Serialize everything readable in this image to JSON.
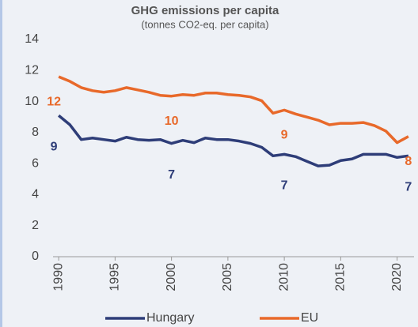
{
  "chart_data": {
    "type": "line",
    "title": "GHG emissions per capita",
    "subtitle": "(tonnes CO2-eq. per capita)",
    "x": [
      1990,
      1991,
      1992,
      1993,
      1994,
      1995,
      1996,
      1997,
      1998,
      1999,
      2000,
      2001,
      2002,
      2003,
      2004,
      2005,
      2006,
      2007,
      2008,
      2009,
      2010,
      2011,
      2012,
      2013,
      2014,
      2015,
      2016,
      2017,
      2018,
      2019,
      2020,
      2021
    ],
    "series": [
      {
        "name": "Hungary",
        "color": "#2e3d78",
        "values": [
          9.1,
          8.5,
          7.55,
          7.65,
          7.55,
          7.45,
          7.7,
          7.55,
          7.5,
          7.55,
          7.3,
          7.5,
          7.35,
          7.65,
          7.55,
          7.55,
          7.45,
          7.3,
          7.05,
          6.5,
          6.6,
          6.45,
          6.15,
          5.85,
          5.9,
          6.2,
          6.3,
          6.6,
          6.6,
          6.6,
          6.4,
          6.5
        ],
        "value_labels": [
          "9",
          null,
          null,
          null,
          null,
          null,
          null,
          null,
          null,
          null,
          "7",
          null,
          null,
          null,
          null,
          null,
          null,
          null,
          null,
          null,
          "7",
          null,
          null,
          null,
          null,
          null,
          null,
          null,
          null,
          null,
          null,
          "7"
        ]
      },
      {
        "name": "EU",
        "color": "#e8692a",
        "values": [
          11.6,
          11.3,
          10.9,
          10.7,
          10.6,
          10.7,
          10.9,
          10.75,
          10.6,
          10.4,
          10.35,
          10.45,
          10.4,
          10.55,
          10.55,
          10.45,
          10.4,
          10.3,
          10.05,
          9.25,
          9.45,
          9.2,
          9.0,
          8.8,
          8.5,
          8.6,
          8.6,
          8.65,
          8.45,
          8.1,
          7.35,
          7.75
        ],
        "value_labels": [
          "12",
          null,
          null,
          null,
          null,
          null,
          null,
          null,
          null,
          null,
          "10",
          null,
          null,
          null,
          null,
          null,
          null,
          null,
          null,
          null,
          "9",
          null,
          null,
          null,
          null,
          null,
          null,
          null,
          null,
          null,
          null,
          "8"
        ]
      }
    ],
    "xlim": [
      1989.5,
      2021.5
    ],
    "xticks": [
      1990,
      1995,
      2000,
      2005,
      2010,
      2015,
      2020
    ],
    "ylim": [
      0,
      14
    ],
    "yticks": [
      0,
      2,
      4,
      6,
      8,
      10,
      12,
      14
    ],
    "grid": false,
    "legend": "bottom"
  }
}
